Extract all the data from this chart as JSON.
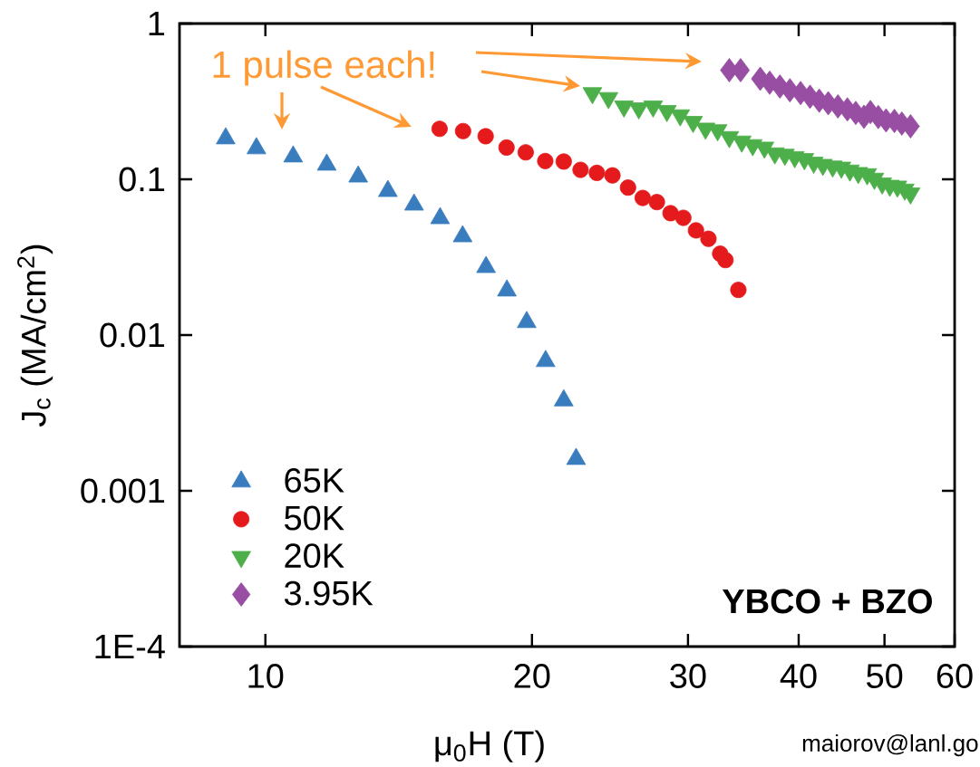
{
  "chart_data": {
    "type": "scatter",
    "xlabel": "μ$_{0}$H (T)",
    "ylabel": "J$_{c}$ (MA/cm$^{2}$)",
    "annotations": [
      "1 pulse each!",
      "YBCO + BZO",
      "maiorov@lanl.go"
    ],
    "log": "xy",
    "grid": false,
    "legend": "bottom left",
    "xlim": [
      8,
      60
    ],
    "xticks": [
      10,
      20,
      30,
      40,
      50,
      60
    ],
    "ylim": [
      0.0001,
      1
    ],
    "yticks": [
      {
        "value": 0.0001,
        "label": "1E-4"
      },
      0.001,
      0.01,
      0.1,
      1
    ],
    "series": [
      {
        "name": "65K",
        "color": "#3a7dbf",
        "marker": "triangle",
        "x": [
          9.02,
          9.77,
          10.75,
          11.73,
          12.73,
          13.75,
          14.72,
          15.75,
          16.7,
          17.75,
          18.74,
          19.73,
          20.72,
          21.72,
          22.43
        ],
        "values": [
          0.183,
          0.158,
          0.14,
          0.124,
          0.104,
          0.084,
          0.0687,
          0.0562,
          0.043,
          0.0273,
          0.0193,
          0.0121,
          0.0068,
          0.0038,
          0.0016
        ]
      },
      {
        "name": "50K",
        "color": "#e41a1c",
        "marker": "circle",
        "x": [
          15.73,
          16.72,
          17.73,
          18.72,
          19.68,
          20.7,
          21.72,
          22.69,
          23.67,
          24.65,
          25.67,
          26.67,
          27.67,
          28.67,
          29.64,
          30.63,
          31.64,
          32.62,
          33.07,
          34.2
        ],
        "values": [
          0.211,
          0.204,
          0.189,
          0.16,
          0.149,
          0.131,
          0.13,
          0.115,
          0.11,
          0.106,
          0.0885,
          0.0759,
          0.0714,
          0.0606,
          0.0566,
          0.047,
          0.0415,
          0.0333,
          0.0303,
          0.0195
        ]
      },
      {
        "name": "20K",
        "color": "#4daf4a",
        "marker": "triangle-down",
        "x": [
          23.4,
          24.4,
          25.4,
          26.4,
          27.4,
          28.4,
          29.4,
          30.4,
          31.4,
          32.4,
          33.4,
          34.5,
          35.5,
          36.6,
          37.6,
          38.6,
          39.6,
          40.6,
          41.6,
          42.6,
          43.7,
          44.7,
          45.7,
          46.7,
          47.8,
          48.7,
          49.7,
          50.7,
          51.7,
          52.7,
          53.5
        ],
        "values": [
          0.358,
          0.333,
          0.294,
          0.286,
          0.294,
          0.275,
          0.258,
          0.234,
          0.212,
          0.207,
          0.187,
          0.175,
          0.166,
          0.16,
          0.147,
          0.144,
          0.139,
          0.135,
          0.128,
          0.124,
          0.121,
          0.119,
          0.114,
          0.11,
          0.108,
          0.101,
          0.0942,
          0.091,
          0.09,
          0.086,
          0.0813
        ]
      },
      {
        "name": "3.95K",
        "color": "#984ea3",
        "marker": "diamond",
        "x": [
          33.4,
          34.4,
          36.2,
          37.1,
          38.1,
          39.1,
          40.2,
          41.2,
          42.2,
          43.2,
          44.3,
          45.4,
          46.4,
          47.4,
          48.2,
          49.2,
          50.2,
          51.3,
          52.3,
          53.5
        ],
        "values": [
          0.502,
          0.502,
          0.442,
          0.417,
          0.394,
          0.373,
          0.358,
          0.339,
          0.32,
          0.308,
          0.294,
          0.281,
          0.267,
          0.252,
          0.27,
          0.251,
          0.239,
          0.237,
          0.228,
          0.219
        ]
      }
    ]
  }
}
